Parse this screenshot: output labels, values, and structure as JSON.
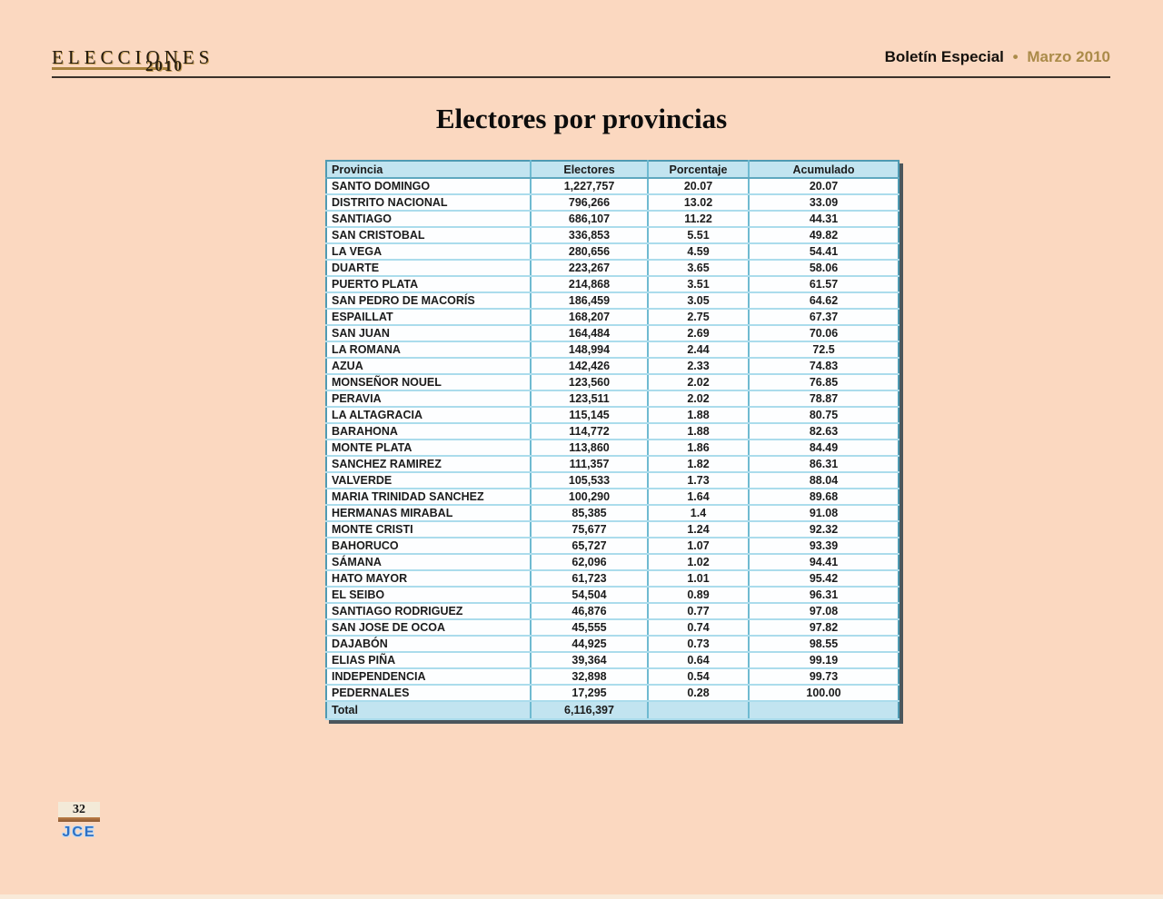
{
  "header": {
    "logo_title": "ELECCIONES",
    "logo_year": "2010",
    "bulletin": "Boletín Especial",
    "separator": "•",
    "date": "Marzo 2010"
  },
  "title": "Electores por provincias",
  "table": {
    "columns": [
      "Provincia",
      "Electores",
      "Porcentaje",
      "Acumulado"
    ],
    "rows": [
      [
        "SANTO DOMINGO",
        "1,227,757",
        "20.07",
        "20.07"
      ],
      [
        "DISTRITO NACIONAL",
        "796,266",
        "13.02",
        "33.09"
      ],
      [
        "SANTIAGO",
        "686,107",
        "11.22",
        "44.31"
      ],
      [
        "SAN CRISTOBAL",
        "336,853",
        "5.51",
        "49.82"
      ],
      [
        "LA VEGA",
        "280,656",
        "4.59",
        "54.41"
      ],
      [
        "DUARTE",
        "223,267",
        "3.65",
        "58.06"
      ],
      [
        "PUERTO PLATA",
        "214,868",
        "3.51",
        "61.57"
      ],
      [
        "SAN PEDRO DE MACORÍS",
        "186,459",
        "3.05",
        "64.62"
      ],
      [
        "ESPAILLAT",
        "168,207",
        "2.75",
        "67.37"
      ],
      [
        "SAN JUAN",
        "164,484",
        "2.69",
        "70.06"
      ],
      [
        "LA ROMANA",
        "148,994",
        "2.44",
        "72.5"
      ],
      [
        "AZUA",
        "142,426",
        "2.33",
        "74.83"
      ],
      [
        "MONSEÑOR NOUEL",
        "123,560",
        "2.02",
        "76.85"
      ],
      [
        "PERAVIA",
        "123,511",
        "2.02",
        "78.87"
      ],
      [
        "LA ALTAGRACIA",
        "115,145",
        "1.88",
        "80.75"
      ],
      [
        "BARAHONA",
        "114,772",
        "1.88",
        "82.63"
      ],
      [
        "MONTE PLATA",
        "113,860",
        "1.86",
        "84.49"
      ],
      [
        "SANCHEZ RAMIREZ",
        "111,357",
        "1.82",
        "86.31"
      ],
      [
        "VALVERDE",
        "105,533",
        "1.73",
        "88.04"
      ],
      [
        "MARIA TRINIDAD SANCHEZ",
        "100,290",
        "1.64",
        "89.68"
      ],
      [
        "HERMANAS MIRABAL",
        "85,385",
        "1.4",
        "91.08"
      ],
      [
        "MONTE CRISTI",
        "75,677",
        "1.24",
        "92.32"
      ],
      [
        "BAHORUCO",
        "65,727",
        "1.07",
        "93.39"
      ],
      [
        "SÁMANA",
        "62,096",
        "1.02",
        "94.41"
      ],
      [
        "HATO MAYOR",
        "61,723",
        "1.01",
        "95.42"
      ],
      [
        "EL SEIBO",
        "54,504",
        "0.89",
        "96.31"
      ],
      [
        "SANTIAGO RODRIGUEZ",
        "46,876",
        "0.77",
        "97.08"
      ],
      [
        "SAN JOSE DE OCOA",
        "45,555",
        "0.74",
        "97.82"
      ],
      [
        "DAJABÓN",
        "44,925",
        "0.73",
        "98.55"
      ],
      [
        "ELIAS PIÑA",
        "39,364",
        "0.64",
        "99.19"
      ],
      [
        "INDEPENDENCIA",
        "32,898",
        "0.54",
        "99.73"
      ],
      [
        "PEDERNALES",
        "17,295",
        "0.28",
        "100.00"
      ]
    ],
    "total": {
      "label": "Total",
      "electores": "6,116,397",
      "porcentaje": "",
      "acumulado": ""
    }
  },
  "footer": {
    "page_number": "32",
    "logo": "JCE"
  },
  "colors": {
    "page_background": "#fbd8c0",
    "accent_gold": "#ab8b49",
    "table_header_bg": "#c2e4f0",
    "table_border": "#4f9ab2",
    "row_line": "#abdcec",
    "jce_blue": "#2e6fc3"
  }
}
